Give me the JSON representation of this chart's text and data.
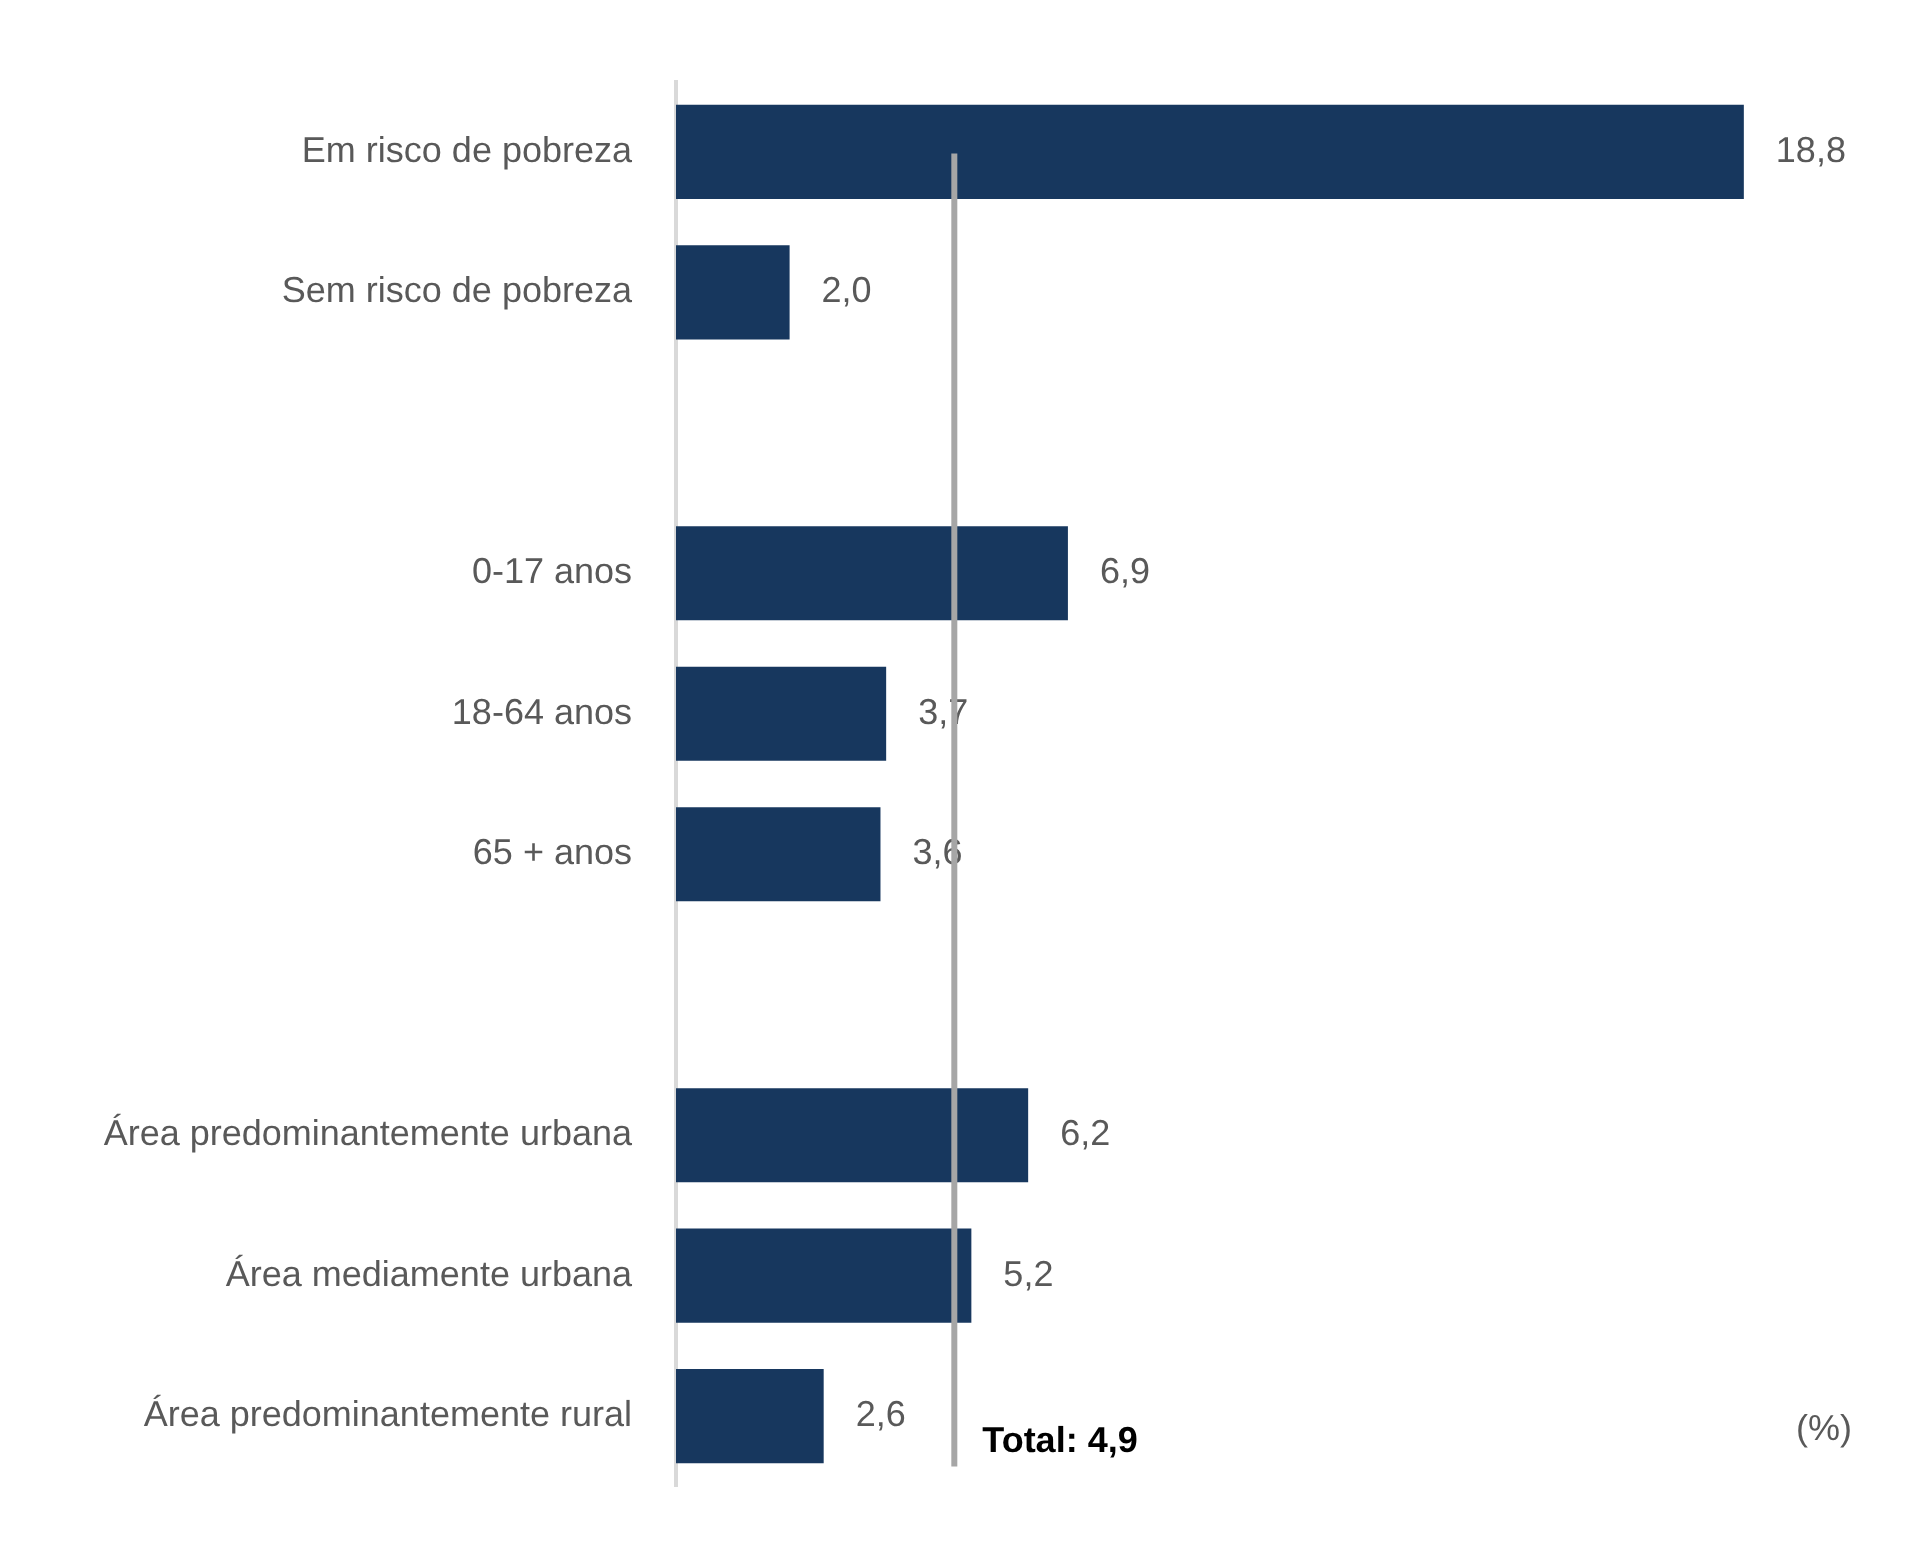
{
  "chart_data": {
    "type": "bar",
    "orientation": "horizontal",
    "categories": [
      "Em risco de pobreza",
      "Sem risco de pobreza",
      null,
      "0-17 anos",
      "18-64 anos",
      "65 + anos",
      null,
      "Área predominantemente urbana",
      "Área mediamente urbana",
      "Área predominantemente rural"
    ],
    "values": [
      18.8,
      2.0,
      null,
      6.9,
      3.7,
      3.6,
      null,
      6.2,
      5.2,
      2.6
    ],
    "value_labels": [
      "18,8",
      "2,0",
      null,
      "6,9",
      "3,7",
      "3,6",
      null,
      "6,2",
      "5,2",
      "2,6"
    ],
    "color": "#17375e",
    "ref_lines": [
      {
        "axis": "x",
        "value": 4.9,
        "label": "Total: 4,9",
        "color": "#a6a6a6"
      }
    ],
    "annotations": [
      "(%)"
    ],
    "tick_labels": "y",
    "legend": false
  }
}
